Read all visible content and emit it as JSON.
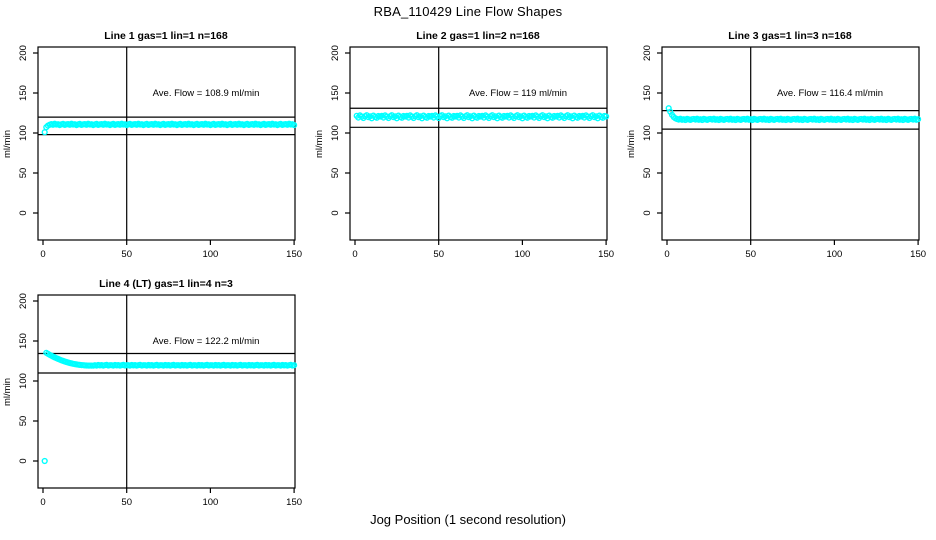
{
  "main_title": "RBA_110429  Line Flow Shapes",
  "x_axis_label": "Jog Position (1 second resolution)",
  "colors": {
    "points": "#00FFFF",
    "axis": "#000000",
    "background": "#FFFFFF"
  },
  "chart_data": [
    {
      "type": "scatter",
      "title": "Line 1 gas=1 lin=1 n=168",
      "ave_flow": 108.9,
      "ave_flow_label": "Ave. Flow =  108.9  ml/min",
      "ylabel": "ml/min",
      "xticks": [
        0,
        50,
        100,
        150
      ],
      "yticks": [
        0,
        50,
        100,
        150,
        200
      ],
      "xlim": [
        0,
        155
      ],
      "ylim": [
        0,
        210
      ],
      "ref_vline_x": 50,
      "ref_hlines": [
        119.8,
        98.0
      ],
      "x_start": 1,
      "x_step": 1,
      "values": [
        101.0,
        107.2,
        109.3,
        110.4,
        111.1,
        110.3,
        111.6,
        110.6,
        111.0,
        109.9,
        110.8,
        111.4,
        110.1,
        110.7,
        111.1,
        110.3,
        111.6,
        110.6,
        111.0,
        109.9,
        110.8,
        111.4,
        110.1,
        110.7,
        111.1,
        110.3,
        111.6,
        110.6,
        111.0,
        109.9,
        110.8,
        111.4,
        110.1,
        110.7,
        111.1,
        110.3,
        111.6,
        110.6,
        111.0,
        109.9,
        110.8,
        111.4,
        110.1,
        110.7,
        111.1,
        110.3,
        111.6,
        110.6,
        111.0,
        109.9,
        110.8,
        111.4,
        110.1,
        110.7,
        111.1,
        110.3,
        111.6,
        110.6,
        111.0,
        109.9,
        110.8,
        111.4,
        110.1,
        110.7,
        111.1,
        110.3,
        111.6,
        110.6,
        111.0,
        109.9,
        110.8,
        111.4,
        110.1,
        110.7,
        111.1,
        110.3,
        111.6,
        110.6,
        111.0,
        109.9,
        110.8,
        111.4,
        110.1,
        110.7,
        111.1,
        110.3,
        111.6,
        110.6,
        111.0,
        109.9,
        110.8,
        111.4,
        110.1,
        110.7,
        111.1,
        110.3,
        111.6,
        110.6,
        111.0,
        109.9,
        110.8,
        111.4,
        110.1,
        110.7,
        111.1,
        110.3,
        111.6,
        110.6,
        111.0,
        109.9,
        110.8,
        111.4,
        110.1,
        110.7,
        111.1,
        110.3,
        111.6,
        110.6,
        111.0,
        109.9,
        110.8,
        111.4,
        110.1,
        110.7,
        111.1,
        110.3,
        111.6,
        110.6,
        111.0,
        109.9,
        110.8,
        111.4,
        110.1,
        110.7,
        111.1,
        110.3,
        111.6,
        110.6,
        111.0,
        109.9,
        110.8,
        111.4,
        110.1,
        110.7,
        111.1,
        110.3,
        111.6,
        110.6,
        111.0,
        109.9
      ]
    },
    {
      "type": "scatter",
      "title": "Line 2 gas=1 lin=2 n=168",
      "ave_flow": 119,
      "ave_flow_label": "Ave. Flow =  119  ml/min",
      "ylabel": "ml/min",
      "xticks": [
        0,
        50,
        100,
        150
      ],
      "yticks": [
        0,
        50,
        100,
        150,
        200
      ],
      "xlim": [
        0,
        155
      ],
      "ylim": [
        0,
        210
      ],
      "ref_vline_x": 50,
      "ref_hlines": [
        130.9,
        107.1
      ],
      "x_start": 1,
      "x_step": 1,
      "values": [
        121.5,
        119.2,
        122.0,
        120.5,
        118.7,
        121.0,
        122.3,
        119.8,
        120.9,
        118.4,
        121.8,
        120.1,
        119.0,
        121.3,
        120.6,
        121.5,
        119.2,
        122.0,
        120.5,
        118.7,
        121.0,
        122.3,
        119.8,
        120.9,
        118.4,
        121.8,
        120.1,
        119.0,
        121.3,
        120.6,
        121.5,
        119.2,
        122.0,
        120.5,
        118.7,
        121.0,
        122.3,
        119.8,
        120.9,
        118.4,
        121.8,
        120.1,
        119.0,
        121.3,
        120.6,
        121.5,
        119.2,
        122.0,
        120.5,
        118.7,
        121.0,
        122.3,
        119.8,
        120.9,
        118.4,
        121.8,
        120.1,
        119.0,
        121.3,
        120.6,
        121.5,
        119.2,
        122.0,
        120.5,
        118.7,
        121.0,
        122.3,
        119.8,
        120.9,
        118.4,
        121.8,
        120.1,
        119.0,
        121.3,
        120.6,
        121.5,
        119.2,
        122.0,
        120.5,
        118.7,
        121.0,
        122.3,
        119.8,
        120.9,
        118.4,
        121.8,
        120.1,
        119.0,
        121.3,
        120.6,
        121.5,
        119.2,
        122.0,
        120.5,
        118.7,
        121.0,
        122.3,
        119.8,
        120.9,
        118.4,
        121.8,
        120.1,
        119.0,
        121.3,
        120.6,
        121.5,
        119.2,
        122.0,
        120.5,
        118.7,
        121.0,
        122.3,
        119.8,
        120.9,
        118.4,
        121.8,
        120.1,
        119.0,
        121.3,
        120.6,
        121.5,
        119.2,
        122.0,
        120.5,
        118.7,
        121.0,
        122.3,
        119.8,
        120.9,
        118.4,
        121.8,
        120.1,
        119.0,
        121.3,
        120.6,
        121.5,
        119.2,
        122.0,
        120.5,
        118.7,
        121.0,
        122.3,
        119.8,
        120.9,
        118.4,
        121.8,
        120.1,
        119.0,
        121.3,
        120.6
      ]
    },
    {
      "type": "scatter",
      "title": "Line 3 gas=1 lin=3 n=168",
      "ave_flow": 116.4,
      "ave_flow_label": "Ave. Flow =  116.4  ml/min",
      "ylabel": "ml/min",
      "xticks": [
        0,
        50,
        100,
        150
      ],
      "yticks": [
        0,
        50,
        100,
        150,
        200
      ],
      "xlim": [
        0,
        155
      ],
      "ylim": [
        0,
        210
      ],
      "ref_vline_x": 50,
      "ref_hlines": [
        128.0,
        104.8
      ],
      "x_start": 1,
      "x_step": 1,
      "values": [
        131.0,
        126.5,
        122.8,
        120.0,
        118.4,
        117.5,
        116.8,
        117.9,
        116.5,
        117.2,
        116.2,
        117.7,
        117.0,
        116.4,
        117.3,
        117.5,
        116.8,
        117.9,
        116.5,
        117.2,
        116.2,
        117.7,
        117.0,
        116.4,
        117.3,
        117.5,
        116.8,
        117.9,
        116.5,
        117.2,
        116.2,
        117.7,
        117.0,
        116.4,
        117.3,
        117.5,
        116.8,
        117.9,
        116.5,
        117.2,
        116.2,
        117.7,
        117.0,
        116.4,
        117.3,
        117.5,
        116.8,
        117.9,
        116.5,
        117.2,
        116.2,
        117.7,
        117.0,
        116.4,
        117.3,
        117.5,
        116.8,
        117.9,
        116.5,
        117.2,
        116.2,
        117.7,
        117.0,
        116.4,
        117.3,
        117.5,
        116.8,
        117.9,
        116.5,
        117.2,
        116.2,
        117.7,
        117.0,
        116.4,
        117.3,
        117.5,
        116.8,
        117.9,
        116.5,
        117.2,
        116.2,
        117.7,
        117.0,
        116.4,
        117.3,
        117.5,
        116.8,
        117.9,
        116.5,
        117.2,
        116.2,
        117.7,
        117.0,
        116.4,
        117.3,
        117.5,
        116.8,
        117.9,
        116.5,
        117.2,
        116.2,
        117.7,
        117.0,
        116.4,
        117.3,
        117.5,
        116.8,
        117.9,
        116.5,
        117.2,
        116.2,
        117.7,
        117.0,
        116.4,
        117.3,
        117.5,
        116.8,
        117.9,
        116.5,
        117.2,
        116.2,
        117.7,
        117.0,
        116.4,
        117.3,
        117.5,
        116.8,
        117.9,
        116.5,
        117.2,
        116.2,
        117.7,
        117.0,
        116.4,
        117.3,
        117.5,
        116.8,
        117.9,
        116.5,
        117.2,
        116.2,
        117.7,
        117.0,
        116.4,
        117.3,
        117.5,
        116.8,
        117.9,
        116.5,
        117.2
      ]
    },
    {
      "type": "scatter",
      "title": "Line 4 (LT) gas=1 lin=4 n=3",
      "ave_flow": 122.2,
      "ave_flow_label": "Ave. Flow =  122.2  ml/min",
      "ylabel": "ml/min",
      "xticks": [
        0,
        50,
        100,
        150
      ],
      "yticks": [
        0,
        50,
        100,
        150,
        200
      ],
      "xlim": [
        0,
        155
      ],
      "ylim": [
        0,
        210
      ],
      "ref_vline_x": 50,
      "ref_hlines": [
        134.4,
        110.0
      ],
      "x_start": 1,
      "x_step": 1,
      "values": [
        0.0,
        135.3,
        134.0,
        132.8,
        131.6,
        130.5,
        129.5,
        128.5,
        127.6,
        126.7,
        125.9,
        125.1,
        124.4,
        123.7,
        123.1,
        122.5,
        122.0,
        121.5,
        121.1,
        120.7,
        120.4,
        120.1,
        119.9,
        119.7,
        119.5,
        119.4,
        119.3,
        119.2,
        119.2,
        119.1,
        119.8,
        119.3,
        120.0,
        119.5,
        119.9,
        119.2,
        119.7,
        120.1,
        119.4,
        119.8,
        119.8,
        119.3,
        120.0,
        119.5,
        119.9,
        119.2,
        119.7,
        120.1,
        119.4,
        119.8,
        119.8,
        119.3,
        120.0,
        119.5,
        119.9,
        119.2,
        119.7,
        120.1,
        119.4,
        119.8,
        119.8,
        119.3,
        120.0,
        119.5,
        119.9,
        119.2,
        119.7,
        120.1,
        119.4,
        119.8,
        119.8,
        119.3,
        120.0,
        119.5,
        119.9,
        119.2,
        119.7,
        120.1,
        119.4,
        119.8,
        119.8,
        119.3,
        120.0,
        119.5,
        119.9,
        119.2,
        119.7,
        120.1,
        119.4,
        119.8,
        119.8,
        119.3,
        120.0,
        119.5,
        119.9,
        119.2,
        119.7,
        120.1,
        119.4,
        119.8,
        119.8,
        119.3,
        120.0,
        119.5,
        119.9,
        119.2,
        119.7,
        120.1,
        119.4,
        119.8,
        119.8,
        119.3,
        120.0,
        119.5,
        119.9,
        119.2,
        119.7,
        120.1,
        119.4,
        119.8,
        119.8,
        119.3,
        120.0,
        119.5,
        119.9,
        119.2,
        119.7,
        120.1,
        119.4,
        119.8,
        119.8,
        119.3,
        120.0,
        119.5,
        119.9,
        119.2,
        119.7,
        120.1,
        119.4,
        119.8,
        119.8,
        119.3,
        120.0,
        119.5,
        119.9,
        119.2,
        119.7,
        120.1,
        119.4,
        119.8
      ]
    }
  ]
}
